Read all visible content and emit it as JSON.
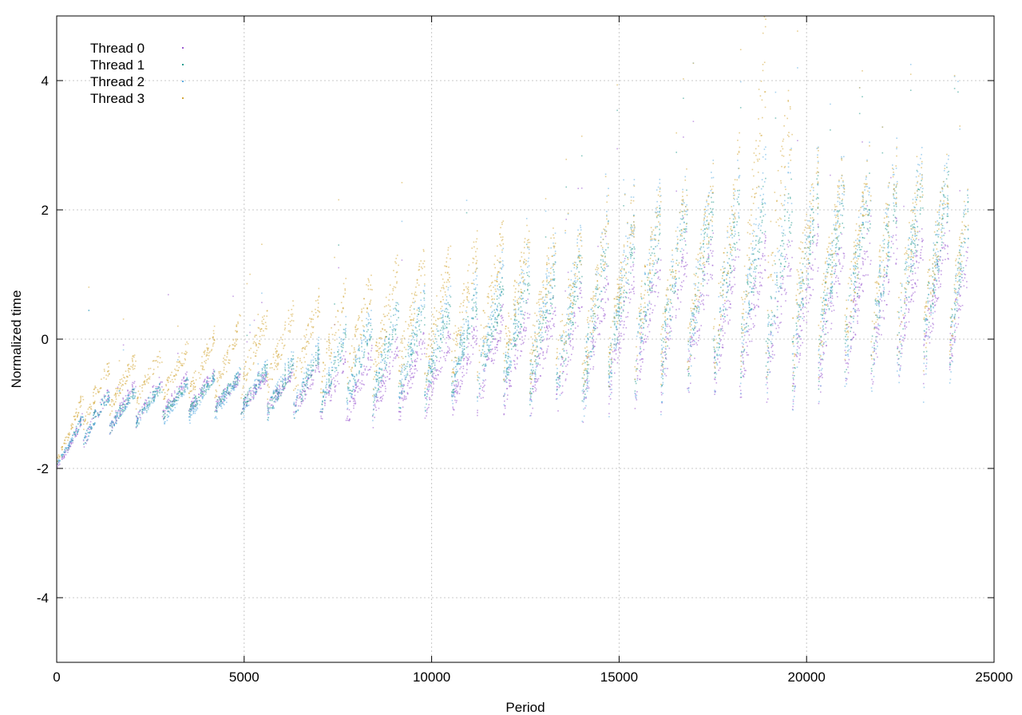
{
  "chart_data": {
    "type": "scatter",
    "title": "",
    "xlabel": "Period",
    "ylabel": "Normalized time",
    "xlim": [
      0,
      25000
    ],
    "ylim": [
      -5,
      5
    ],
    "x_ticks": [
      0,
      5000,
      10000,
      15000,
      20000,
      25000
    ],
    "y_ticks": [
      -4,
      -2,
      0,
      2,
      4
    ],
    "x_tick_labels": [
      "0",
      "5000",
      "10000",
      "15000",
      "20000",
      "25000"
    ],
    "y_tick_labels": [
      "-4",
      "-2",
      "0",
      "2",
      "4"
    ],
    "grid": true,
    "legend_position": "top-left",
    "series": [
      {
        "name": "Thread 0",
        "color": "#9b59d0",
        "sawtooth_lows": [
          [
            0,
            -1.95
          ],
          [
            1000,
            -1.5
          ],
          [
            2000,
            -1.3
          ],
          [
            3000,
            -1.2
          ],
          [
            4000,
            -1.1
          ],
          [
            5000,
            -1.1
          ],
          [
            6000,
            -1.1
          ],
          [
            7000,
            -1.2
          ],
          [
            8000,
            -1.3
          ],
          [
            9000,
            -1.2
          ],
          [
            10000,
            -1.1
          ],
          [
            11000,
            -1.1
          ],
          [
            12000,
            -1.0
          ],
          [
            13000,
            -1.1
          ],
          [
            14000,
            -1.1
          ],
          [
            15000,
            -0.9
          ],
          [
            16000,
            -0.8
          ],
          [
            17000,
            -0.7
          ],
          [
            18000,
            -0.8
          ],
          [
            19000,
            -0.8
          ],
          [
            20000,
            -0.8
          ],
          [
            21000,
            -0.6
          ],
          [
            22000,
            -0.6
          ],
          [
            23000,
            -0.4
          ],
          [
            24300,
            -0.2
          ]
        ],
        "sawtooth_highs": [
          [
            0,
            -1.8
          ],
          [
            1000,
            -0.9
          ],
          [
            2000,
            -0.7
          ],
          [
            3000,
            -0.6
          ],
          [
            4000,
            -0.5
          ],
          [
            5000,
            -0.6
          ],
          [
            6000,
            -0.5
          ],
          [
            7000,
            -0.4
          ],
          [
            8000,
            -0.3
          ],
          [
            9000,
            -0.1
          ],
          [
            10000,
            0.0
          ],
          [
            11000,
            0.1
          ],
          [
            12000,
            0.4
          ],
          [
            13000,
            0.5
          ],
          [
            14000,
            0.7
          ],
          [
            15000,
            1.0
          ],
          [
            16000,
            1.2
          ],
          [
            17000,
            1.4
          ],
          [
            18000,
            1.3
          ],
          [
            19000,
            1.4
          ],
          [
            20000,
            1.5
          ],
          [
            21000,
            1.5
          ],
          [
            22000,
            1.6
          ],
          [
            23000,
            1.6
          ],
          [
            24300,
            1.7
          ]
        ]
      },
      {
        "name": "Thread 1",
        "color": "#2a9d8f",
        "sawtooth_lows": [
          [
            0,
            -1.9
          ],
          [
            1000,
            -1.5
          ],
          [
            2000,
            -1.3
          ],
          [
            3000,
            -1.2
          ],
          [
            4000,
            -1.1
          ],
          [
            5000,
            -1.1
          ],
          [
            6000,
            -1.2
          ],
          [
            7000,
            -1.1
          ],
          [
            8000,
            -1.0
          ],
          [
            9000,
            -1.0
          ],
          [
            10000,
            -0.9
          ],
          [
            11000,
            -0.8
          ],
          [
            12000,
            -0.7
          ],
          [
            13000,
            -0.8
          ],
          [
            14000,
            -0.9
          ],
          [
            15000,
            -0.6
          ],
          [
            16000,
            -0.5
          ],
          [
            17000,
            -0.4
          ],
          [
            18000,
            -0.5
          ],
          [
            19000,
            -0.4
          ],
          [
            20000,
            -0.5
          ],
          [
            21000,
            -0.4
          ],
          [
            22000,
            -0.3
          ],
          [
            23000,
            -0.3
          ],
          [
            24300,
            -0.1
          ]
        ],
        "sawtooth_highs": [
          [
            0,
            -1.75
          ],
          [
            1000,
            -0.9
          ],
          [
            2000,
            -0.8
          ],
          [
            3000,
            -0.7
          ],
          [
            4000,
            -0.6
          ],
          [
            5000,
            -0.5
          ],
          [
            6000,
            -0.4
          ],
          [
            7000,
            -0.2
          ],
          [
            8000,
            0.2
          ],
          [
            9000,
            0.4
          ],
          [
            10000,
            0.5
          ],
          [
            11000,
            0.6
          ],
          [
            12000,
            0.8
          ],
          [
            13000,
            1.0
          ],
          [
            14000,
            1.2
          ],
          [
            15000,
            1.6
          ],
          [
            16000,
            1.8
          ],
          [
            17000,
            2.0
          ],
          [
            18000,
            2.0
          ],
          [
            19000,
            2.2
          ],
          [
            20000,
            2.2
          ],
          [
            21000,
            2.2
          ],
          [
            22000,
            2.3
          ],
          [
            23000,
            2.4
          ],
          [
            24300,
            2.5
          ]
        ]
      },
      {
        "name": "Thread 2",
        "color": "#5dade2",
        "sawtooth_lows": [
          [
            0,
            -1.9
          ],
          [
            1000,
            -1.5
          ],
          [
            2000,
            -1.3
          ],
          [
            3000,
            -1.3
          ],
          [
            4000,
            -1.2
          ],
          [
            5000,
            -1.2
          ],
          [
            6000,
            -1.2
          ],
          [
            7000,
            -1.1
          ],
          [
            8000,
            -1.1
          ],
          [
            9000,
            -1.0
          ],
          [
            10000,
            -0.9
          ],
          [
            11000,
            -0.9
          ],
          [
            12000,
            -0.8
          ],
          [
            13000,
            -0.9
          ],
          [
            14000,
            -1.2
          ],
          [
            15000,
            -0.8
          ],
          [
            16000,
            -0.7
          ],
          [
            17000,
            -0.6
          ],
          [
            18000,
            -0.7
          ],
          [
            19000,
            -0.7
          ],
          [
            20000,
            -0.8
          ],
          [
            21000,
            -0.6
          ],
          [
            22000,
            -0.6
          ],
          [
            23000,
            -0.5
          ],
          [
            24300,
            -0.3
          ]
        ],
        "sawtooth_highs": [
          [
            0,
            -1.75
          ],
          [
            1000,
            -0.9
          ],
          [
            2000,
            -0.8
          ],
          [
            3000,
            -0.7
          ],
          [
            4000,
            -0.6
          ],
          [
            5000,
            -0.5
          ],
          [
            6000,
            -0.3
          ],
          [
            7000,
            -0.1
          ],
          [
            8000,
            0.3
          ],
          [
            9000,
            0.5
          ],
          [
            10000,
            0.6
          ],
          [
            11000,
            0.8
          ],
          [
            12000,
            1.2
          ],
          [
            13000,
            1.4
          ],
          [
            14000,
            1.6
          ],
          [
            15000,
            2.0
          ],
          [
            16000,
            2.2
          ],
          [
            17000,
            2.3
          ],
          [
            18000,
            2.4
          ],
          [
            19000,
            2.6
          ],
          [
            20000,
            2.6
          ],
          [
            21000,
            2.6
          ],
          [
            22000,
            2.7
          ],
          [
            23000,
            2.8
          ],
          [
            24300,
            2.6
          ]
        ]
      },
      {
        "name": "Thread 3",
        "color": "#d4a73a",
        "sawtooth_lows": [
          [
            0,
            -1.85
          ],
          [
            1000,
            -1.2
          ],
          [
            2000,
            -1.0
          ],
          [
            3000,
            -0.9
          ],
          [
            4000,
            -0.9
          ],
          [
            5000,
            -0.8
          ],
          [
            6000,
            -0.8
          ],
          [
            7000,
            -0.8
          ],
          [
            8000,
            -0.7
          ],
          [
            9000,
            -0.6
          ],
          [
            10000,
            -0.6
          ],
          [
            11000,
            -0.5
          ],
          [
            12000,
            -0.4
          ],
          [
            13000,
            -0.6
          ],
          [
            14000,
            -0.7
          ],
          [
            15000,
            -0.4
          ],
          [
            16000,
            -0.3
          ],
          [
            17000,
            -0.3
          ],
          [
            18000,
            -0.3
          ],
          [
            19000,
            -0.2
          ],
          [
            20000,
            -0.3
          ],
          [
            21000,
            -0.2
          ],
          [
            22000,
            -0.1
          ],
          [
            23000,
            -0.1
          ],
          [
            24300,
            0.1
          ]
        ],
        "sawtooth_highs": [
          [
            0,
            -1.6
          ],
          [
            1000,
            -0.5
          ],
          [
            2000,
            -0.3
          ],
          [
            3000,
            -0.2
          ],
          [
            4000,
            0.0
          ],
          [
            5000,
            0.3
          ],
          [
            6000,
            0.4
          ],
          [
            7000,
            0.6
          ],
          [
            8000,
            0.8
          ],
          [
            9000,
            1.1
          ],
          [
            10000,
            1.2
          ],
          [
            11000,
            1.4
          ],
          [
            12000,
            1.6
          ],
          [
            13000,
            1.6
          ],
          [
            14000,
            1.5
          ],
          [
            15000,
            2.0
          ],
          [
            16000,
            2.1
          ],
          [
            17000,
            2.3
          ],
          [
            18000,
            2.4
          ],
          [
            19000,
            4.8
          ],
          [
            20000,
            2.6
          ],
          [
            21000,
            2.6
          ],
          [
            22000,
            2.7
          ],
          [
            23000,
            2.6
          ],
          [
            24300,
            2.7
          ]
        ]
      }
    ],
    "cycle_period": 700,
    "x_max_data": 24300
  }
}
